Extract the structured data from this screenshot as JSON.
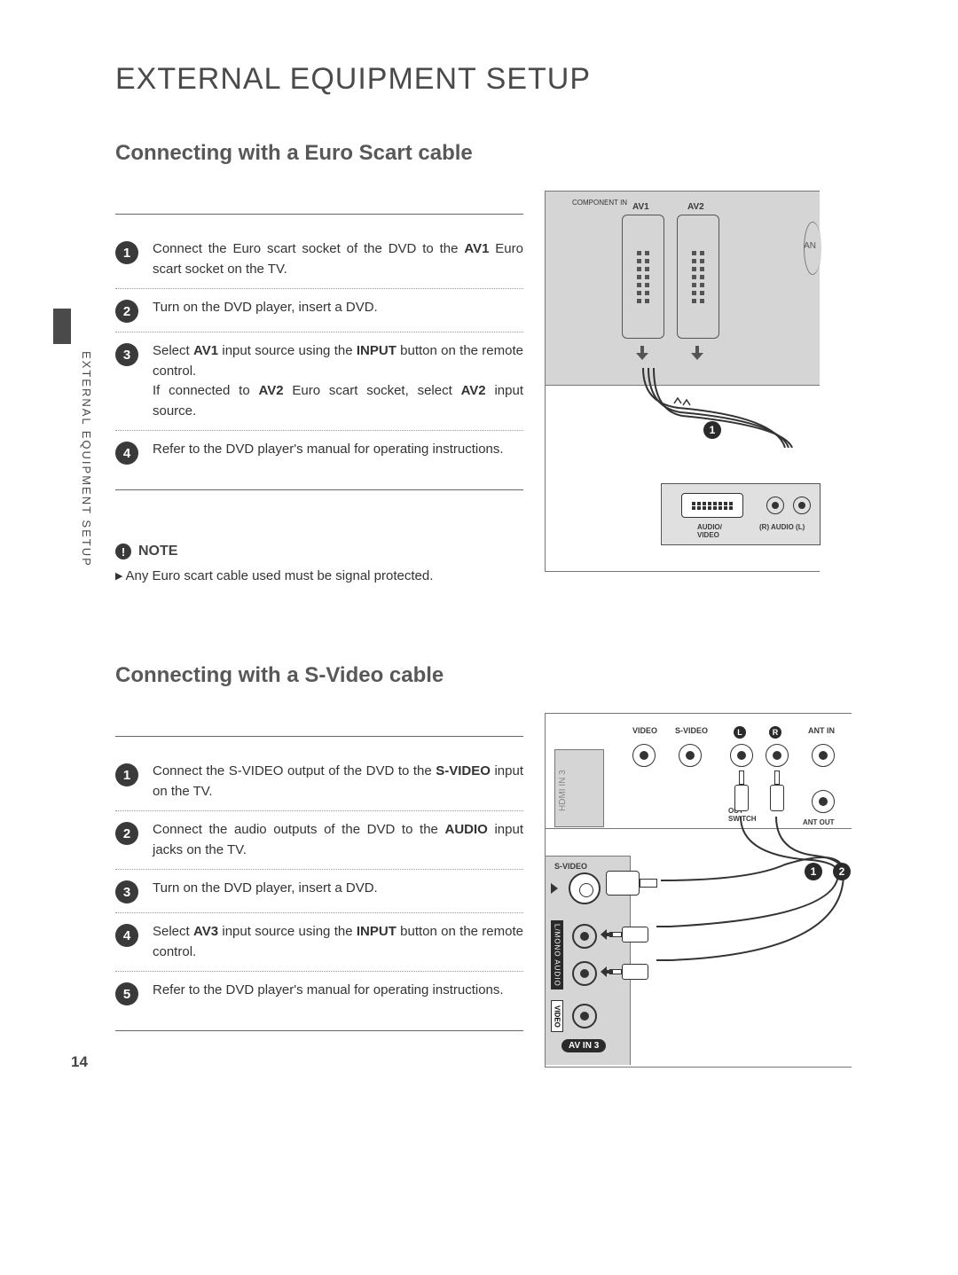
{
  "page_number": "14",
  "side_label": "EXTERNAL EQUIPMENT SETUP",
  "main_title": "EXTERNAL EQUIPMENT SETUP",
  "section1": {
    "title": "Connecting with a Euro Scart cable",
    "steps": [
      "Connect the Euro scart socket of the DVD to the <b>AV1</b> Euro scart socket on the TV.",
      "Turn on the DVD player, insert a DVD.",
      "Select <b>AV1</b> input source using the <b>INPUT</b> button on the remote control.<br>If connected to <b>AV2</b> Euro scart socket, select <b>AV2</b> input source.",
      "Refer to the DVD player's manual for operating instructions."
    ],
    "diagram": {
      "labels": {
        "component": "COMPONENT IN",
        "av1": "AV1",
        "av2": "AV2",
        "an": "AN",
        "audio_video": "AUDIO/\nVIDEO",
        "r_audio_l": "(R) AUDIO (L)"
      },
      "badge": "1"
    }
  },
  "note": {
    "label": "NOTE",
    "text": "Any Euro scart cable used must be signal protected."
  },
  "section2": {
    "title": "Connecting with a S-Video cable",
    "steps": [
      "Connect the S-VIDEO output of the DVD to the <b>S-VIDEO</b> input on the TV.",
      "Connect the audio outputs of the DVD to the <b>AUDIO</b> input jacks on the TV.",
      "Turn on the DVD player, insert a DVD.",
      "Select <b>AV3</b> input source using the <b>INPUT</b> button on the remote control.",
      "Refer to the DVD player's manual for operating instructions."
    ],
    "diagram": {
      "labels": {
        "hdmi": "HDMI IN 3",
        "video": "VIDEO",
        "svideo": "S-VIDEO",
        "L": "L",
        "R": "R",
        "antin": "ANT IN",
        "antout": "ANT OUT",
        "out": "OUT\nSWITCH",
        "side_svideo": "S-VIDEO",
        "side_audio": "L/MONO AUDIO",
        "side_video": "VIDEO",
        "avin3": "AV IN 3"
      },
      "badges": [
        "1",
        "2"
      ]
    }
  }
}
